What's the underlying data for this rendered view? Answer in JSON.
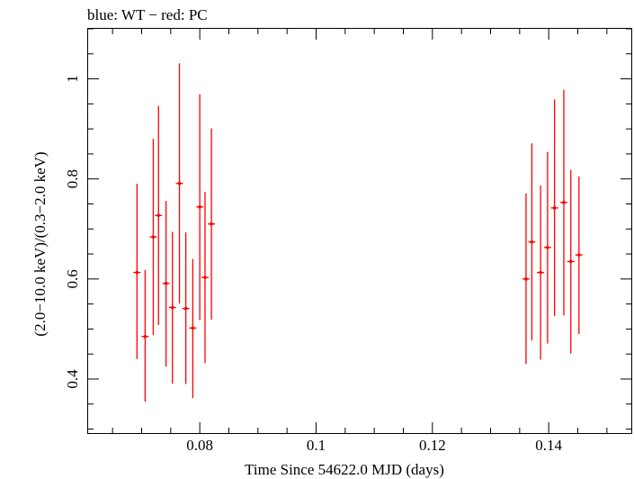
{
  "header": {
    "title": "blue: WT − red: PC"
  },
  "chart_data": {
    "type": "scatter",
    "title": "blue: WT − red: PC",
    "xlabel": "Time Since 54622.0 MJD (days)",
    "ylabel": "(2.0−10.0 keV)/(0.3−2.0 keV)",
    "xlim": [
      0.0608,
      0.1542
    ],
    "ylim": [
      0.292,
      1.1
    ],
    "x_ticks": [
      {
        "value": 0.08,
        "label": "0.08"
      },
      {
        "value": 0.1,
        "label": "0.1"
      },
      {
        "value": 0.12,
        "label": "0.12"
      },
      {
        "value": 0.14,
        "label": "0.14"
      }
    ],
    "y_ticks": [
      {
        "value": 0.4,
        "label": "0.4"
      },
      {
        "value": 0.6,
        "label": "0.6"
      },
      {
        "value": 0.8,
        "label": "0.8"
      },
      {
        "value": 1,
        "label": "1"
      }
    ],
    "series": [
      {
        "name": "PC",
        "color": "#ff0000",
        "points": [
          {
            "x": 0.0692,
            "y": 0.613,
            "ylo": 0.44,
            "yhi": 0.79
          },
          {
            "x": 0.0706,
            "y": 0.485,
            "ylo": 0.355,
            "yhi": 0.618
          },
          {
            "x": 0.072,
            "y": 0.684,
            "ylo": 0.488,
            "yhi": 0.88
          },
          {
            "x": 0.0729,
            "y": 0.727,
            "ylo": 0.508,
            "yhi": 0.946
          },
          {
            "x": 0.0742,
            "y": 0.591,
            "ylo": 0.425,
            "yhi": 0.756
          },
          {
            "x": 0.0753,
            "y": 0.543,
            "ylo": 0.391,
            "yhi": 0.694
          },
          {
            "x": 0.0765,
            "y": 0.791,
            "ylo": 0.551,
            "yhi": 1.031
          },
          {
            "x": 0.0776,
            "y": 0.541,
            "ylo": 0.39,
            "yhi": 0.693
          },
          {
            "x": 0.0788,
            "y": 0.502,
            "ylo": 0.362,
            "yhi": 0.64
          },
          {
            "x": 0.08,
            "y": 0.744,
            "ylo": 0.518,
            "yhi": 0.969
          },
          {
            "x": 0.0809,
            "y": 0.603,
            "ylo": 0.432,
            "yhi": 0.774
          },
          {
            "x": 0.082,
            "y": 0.71,
            "ylo": 0.519,
            "yhi": 0.901
          },
          {
            "x": 0.1361,
            "y": 0.6,
            "ylo": 0.43,
            "yhi": 0.771
          },
          {
            "x": 0.1371,
            "y": 0.674,
            "ylo": 0.477,
            "yhi": 0.871
          },
          {
            "x": 0.1386,
            "y": 0.613,
            "ylo": 0.439,
            "yhi": 0.787
          },
          {
            "x": 0.1398,
            "y": 0.663,
            "ylo": 0.471,
            "yhi": 0.854
          },
          {
            "x": 0.141,
            "y": 0.742,
            "ylo": 0.526,
            "yhi": 0.959
          },
          {
            "x": 0.1426,
            "y": 0.753,
            "ylo": 0.527,
            "yhi": 0.978
          },
          {
            "x": 0.1438,
            "y": 0.635,
            "ylo": 0.451,
            "yhi": 0.818
          },
          {
            "x": 0.1452,
            "y": 0.648,
            "ylo": 0.49,
            "yhi": 0.805
          }
        ]
      }
    ]
  }
}
